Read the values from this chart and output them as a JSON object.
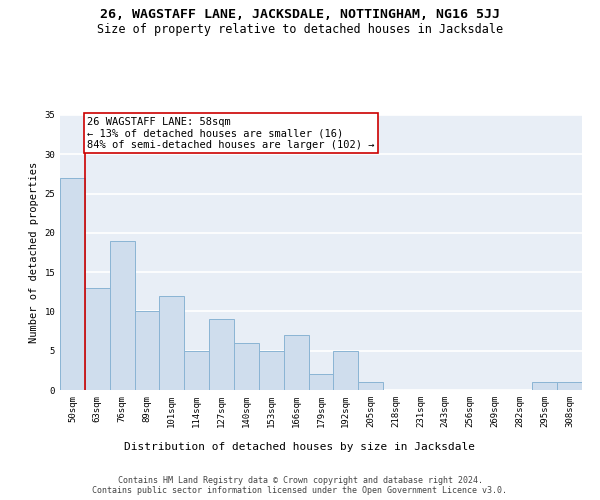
{
  "title1": "26, WAGSTAFF LANE, JACKSDALE, NOTTINGHAM, NG16 5JJ",
  "title2": "Size of property relative to detached houses in Jacksdale",
  "xlabel": "Distribution of detached houses by size in Jacksdale",
  "ylabel": "Number of detached properties",
  "categories": [
    "50sqm",
    "63sqm",
    "76sqm",
    "89sqm",
    "101sqm",
    "114sqm",
    "127sqm",
    "140sqm",
    "153sqm",
    "166sqm",
    "179sqm",
    "192sqm",
    "205sqm",
    "218sqm",
    "231sqm",
    "243sqm",
    "256sqm",
    "269sqm",
    "282sqm",
    "295sqm",
    "308sqm"
  ],
  "values": [
    27,
    13,
    19,
    10,
    12,
    5,
    9,
    6,
    5,
    7,
    2,
    5,
    1,
    0,
    0,
    0,
    0,
    0,
    0,
    1,
    1
  ],
  "bar_color": "#cfdded",
  "bar_edge_color": "#8ab4d4",
  "bar_width": 1.0,
  "property_label": "26 WAGSTAFF LANE: 58sqm",
  "annotation_line1": "← 13% of detached houses are smaller (16)",
  "annotation_line2": "84% of semi-detached houses are larger (102) →",
  "red_line_color": "#cc0000",
  "annotation_box_edge": "#cc0000",
  "ylim": [
    0,
    35
  ],
  "yticks": [
    0,
    5,
    10,
    15,
    20,
    25,
    30,
    35
  ],
  "footer1": "Contains HM Land Registry data © Crown copyright and database right 2024.",
  "footer2": "Contains public sector information licensed under the Open Government Licence v3.0.",
  "bg_color": "#e8eef6",
  "grid_color": "#ffffff",
  "title1_fontsize": 9.5,
  "title2_fontsize": 8.5,
  "xlabel_fontsize": 8,
  "ylabel_fontsize": 7.5,
  "tick_fontsize": 6.5,
  "footer_fontsize": 6,
  "annotation_fontsize": 7.5
}
